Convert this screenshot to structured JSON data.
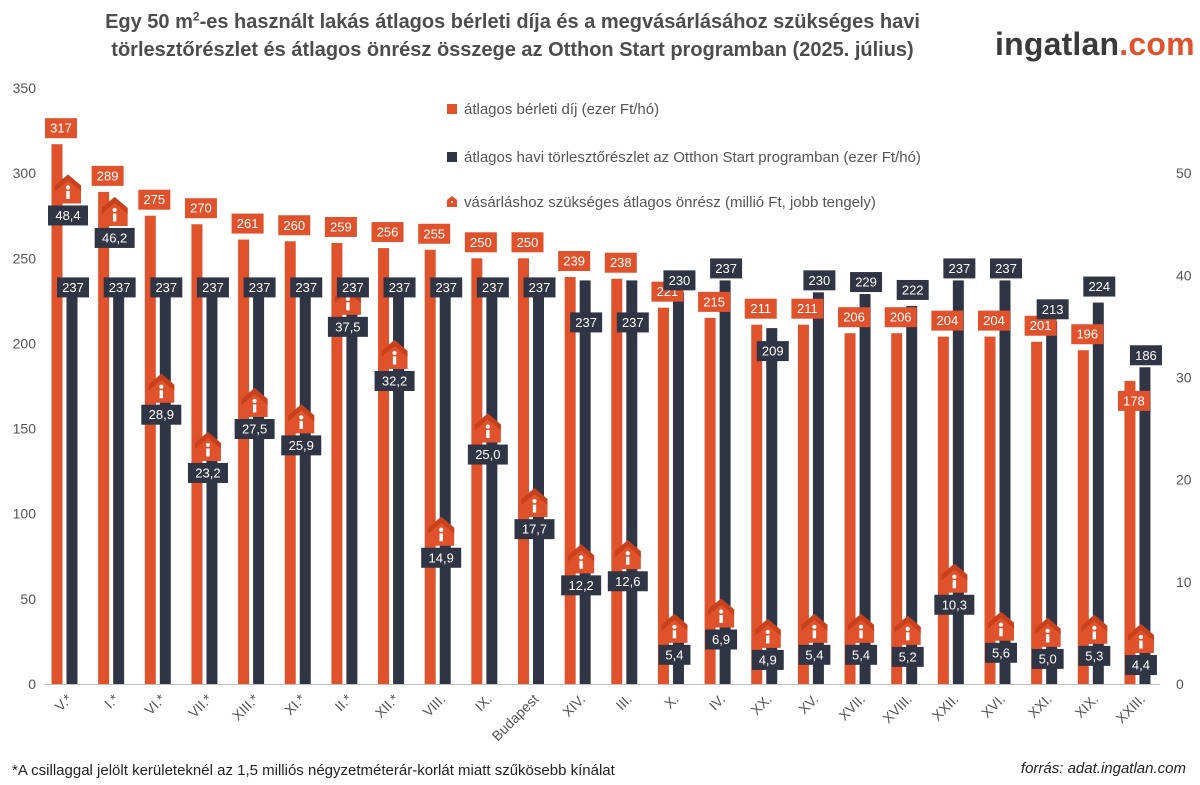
{
  "title": {
    "line1_a": "Egy 50 m",
    "line1_sup": "2",
    "line1_b": "-es használt lakás átlagos bérleti díja és a megvásárlásához szükséges havi",
    "line2": "törlesztőrészlet és átlagos önrész összege az Otthon Start programban (2025. július)"
  },
  "logo": {
    "part1": "ingatlan",
    "part2": ".com"
  },
  "footnote": "*A csillaggal jelölt kerületeknél az 1,5 milliós négyzetméterár-korlát miatt szűkösebb kínálat",
  "source": "forrás: adat.ingatlan.com",
  "colors": {
    "rent": "#e0522b",
    "installment": "#2f3544",
    "label_text": "#ffffff",
    "axis_text": "#555555",
    "grid": "#e6e6e6"
  },
  "chart_data": {
    "type": "bar",
    "categories": [
      "V.*",
      "I.*",
      "VI.*",
      "VII.*",
      "XIII.*",
      "XI.*",
      "II.*",
      "XII.*",
      "VIII.",
      "IX.",
      "Budapest",
      "XIV.",
      "III.",
      "X.",
      "IV.",
      "XX.",
      "XV.",
      "XVII.",
      "XVIII.",
      "XXII.",
      "XVI.",
      "XXI.",
      "XIX.",
      "XXIII."
    ],
    "series": [
      {
        "name": "átlagos bérleti díj (ezer Ft/hó)",
        "axis": "left",
        "type": "bar",
        "values": [
          317,
          289,
          275,
          270,
          261,
          260,
          259,
          256,
          255,
          250,
          250,
          239,
          238,
          221,
          215,
          211,
          211,
          206,
          206,
          204,
          204,
          201,
          196,
          178
        ]
      },
      {
        "name": "átlagos havi törlesztőrészlet az Otthon Start programban (ezer Ft/hó)",
        "axis": "left",
        "type": "bar",
        "values": [
          237,
          237,
          237,
          237,
          237,
          237,
          237,
          237,
          237,
          237,
          237,
          237,
          237,
          230,
          237,
          209,
          230,
          229,
          222,
          237,
          237,
          213,
          224,
          186
        ]
      },
      {
        "name": "vásárláshoz szükséges átlagos önrész (millió Ft, jobb tengely)",
        "axis": "right",
        "type": "marker",
        "values": [
          48.4,
          46.2,
          28.9,
          23.2,
          27.5,
          25.9,
          37.5,
          32.2,
          14.9,
          25.0,
          17.7,
          12.2,
          12.6,
          5.4,
          6.9,
          4.9,
          5.4,
          5.4,
          5.2,
          10.3,
          5.6,
          5.0,
          5.3,
          4.4
        ],
        "labels": [
          "48,4",
          "46,2",
          "28,9",
          "23,2",
          "27,5",
          "25,9",
          "37,5",
          "32,2",
          "14,9",
          "25,0",
          "17,7",
          "12,2",
          "12,6",
          "5,4",
          "6,9",
          "4,9",
          "5,4",
          "5,4",
          "5,2",
          "10,3",
          "5,6",
          "5,0",
          "5,3",
          "4,4"
        ]
      }
    ],
    "y_left": {
      "min": 0,
      "max": 350,
      "ticks": [
        "0",
        "50",
        "100",
        "150",
        "200",
        "250",
        "300",
        "350"
      ]
    },
    "y_right": {
      "min": 0,
      "max": 58.33,
      "ticks": [
        "0",
        "10",
        "20",
        "30",
        "40",
        "50"
      ]
    },
    "legend_position": "top-center",
    "grid": false
  }
}
